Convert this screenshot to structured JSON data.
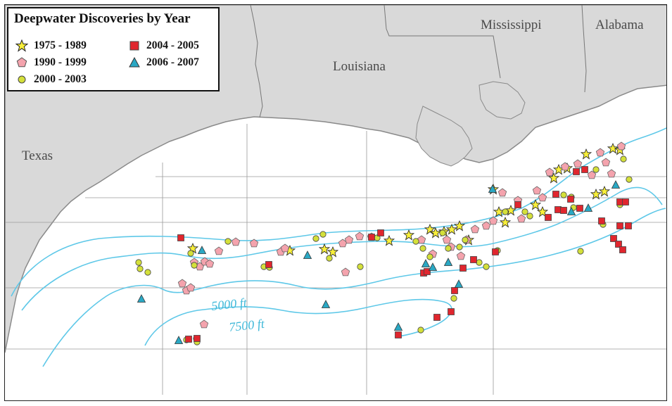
{
  "map": {
    "title": "Deepwater Discoveries by Year",
    "state_labels": {
      "texas": "Texas",
      "louisiana": "Louisiana",
      "mississippi": "Mississippi",
      "alabama": "Alabama"
    },
    "contour_labels": {
      "c5000": "5000 ft",
      "c7500": "7500 ft"
    },
    "colors": {
      "land": "#d9d9d9",
      "land_border": "#8a8a8a",
      "water": "#ffffff",
      "lease_lines": "#9a9a9a",
      "bathymetry": "#5ec8e8",
      "star": "#f8ef3a",
      "pentagon": "#f4a3ad",
      "circle": "#d4e03a",
      "square": "#e0262e",
      "triangle": "#2aa8c4"
    },
    "legend": [
      {
        "label": "1975 - 1989",
        "symbol": "star-icon"
      },
      {
        "label": "1990 - 1999",
        "symbol": "pentagon-icon"
      },
      {
        "label": "2000 - 2003",
        "symbol": "circle-icon"
      },
      {
        "label": "2004 - 2005",
        "symbol": "square-icon"
      },
      {
        "label": "2006 - 2007",
        "symbol": "triangle-icon"
      }
    ]
  }
}
